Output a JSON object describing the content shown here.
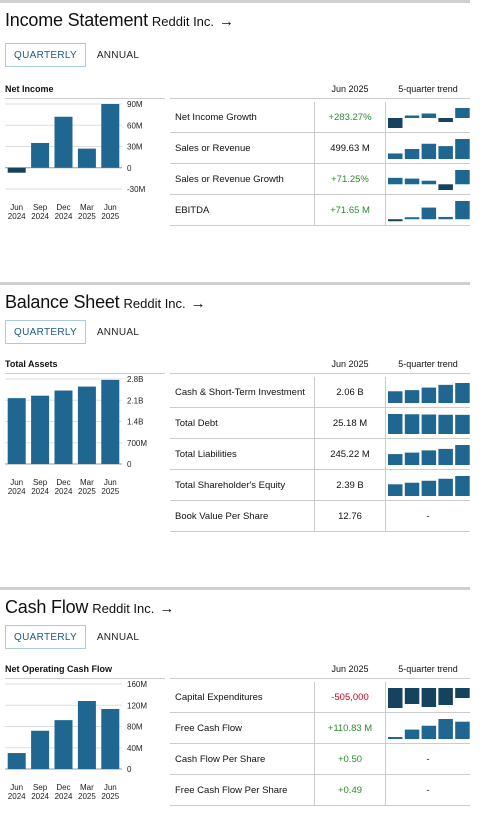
{
  "colors": {
    "bar": "#1f6790",
    "spark": "#1f6790",
    "spark_dark": "#15425e",
    "positive": "#2e8b2e",
    "negative": "#d0021b"
  },
  "quarters": [
    {
      "m": "Jun",
      "y": "2024"
    },
    {
      "m": "Sep",
      "y": "2024"
    },
    {
      "m": "Dec",
      "y": "2024"
    },
    {
      "m": "Mar",
      "y": "2025"
    },
    {
      "m": "Jun",
      "y": "2025"
    }
  ],
  "income": {
    "title": "Income Statement",
    "company": "Reddit Inc.",
    "arrow": "→",
    "tabs": {
      "quarterly": "QUARTERLY",
      "annual": "ANNUAL"
    },
    "chart_label": "Net Income",
    "col_period": "Jun 2025",
    "col_trend": "5-quarter trend",
    "rows": [
      {
        "label": "Net Income Growth",
        "value": "+283.27%",
        "tone": "pos",
        "trend": [
          -1,
          0.25,
          0.45,
          -0.4,
          1
        ],
        "dash": false
      },
      {
        "label": "Sales or Revenue",
        "value": "499.63 M",
        "tone": "",
        "trend": [
          281,
          348,
          428,
          392,
          500
        ],
        "dash": false
      },
      {
        "label": "Sales or Revenue Growth",
        "value": "+71.25%",
        "tone": "pos",
        "trend": [
          0.45,
          0.4,
          0.25,
          -0.4,
          1
        ],
        "dash": false
      },
      {
        "label": "EBITDA",
        "value": "+71.65 M",
        "tone": "pos",
        "trend": [
          -7,
          3,
          46,
          9,
          72
        ],
        "dash": false
      }
    ]
  },
  "balance": {
    "title": "Balance Sheet",
    "company": "Reddit Inc.",
    "arrow": "→",
    "tabs": {
      "quarterly": "QUARTERLY",
      "annual": "ANNUAL"
    },
    "chart_label": "Total Assets",
    "col_period": "Jun 2025",
    "col_trend": "5-quarter trend",
    "rows": [
      {
        "label": "Cash & Short-Term Investment",
        "value": "2.06 B",
        "tone": "",
        "trend": [
          1.7,
          1.75,
          1.86,
          1.98,
          2.06
        ],
        "dash": false
      },
      {
        "label": "Total Debt",
        "value": "25.18 M",
        "tone": "",
        "trend": [
          25.5,
          25.4,
          25.3,
          25.2,
          25.18
        ],
        "dash": false
      },
      {
        "label": "Total Liabilities",
        "value": "245.22 M",
        "tone": "",
        "trend": [
          196,
          204,
          216,
          224,
          245
        ],
        "dash": false
      },
      {
        "label": "Total Shareholder's Equity",
        "value": "2.39 B",
        "tone": "",
        "trend": [
          1.97,
          2.05,
          2.15,
          2.25,
          2.39
        ],
        "dash": false
      },
      {
        "label": "Book Value Per Share",
        "value": "12.76",
        "tone": "",
        "trend": [],
        "dash": true,
        "dash_text": "-"
      }
    ]
  },
  "cashflow": {
    "title": "Cash Flow",
    "company": "Reddit Inc.",
    "arrow": "→",
    "tabs": {
      "quarterly": "QUARTERLY",
      "annual": "ANNUAL"
    },
    "chart_label": "Net Operating Cash Flow",
    "col_period": "Jun 2025",
    "col_trend": "5-quarter trend",
    "rows": [
      {
        "label": "Capital Expenditures",
        "value": "-505,000",
        "tone": "neg",
        "trend": [
          -1,
          -0.8,
          -0.95,
          -0.85,
          -0.5
        ],
        "dash": false
      },
      {
        "label": "Free Cash Flow",
        "value": "+110.83 M",
        "tone": "pos",
        "trend": [
          30,
          70,
          90,
          125,
          111
        ],
        "dash": false
      },
      {
        "label": "Cash Flow Per Share",
        "value": "+0.50",
        "tone": "pos",
        "trend": [],
        "dash": true,
        "dash_text": "-"
      },
      {
        "label": "Free Cash Flow Per Share",
        "value": "+0.49",
        "tone": "pos",
        "trend": [],
        "dash": true,
        "dash_text": "-"
      }
    ]
  },
  "chart_data": [
    {
      "type": "bar",
      "name_ref": "income",
      "title": "Net Income",
      "categories": [
        "Jun 2024",
        "Sep 2024",
        "Dec 2024",
        "Mar 2025",
        "Jun 2025"
      ],
      "values": [
        -7,
        35,
        72,
        27,
        90
      ],
      "ylim": [
        -30,
        90
      ],
      "yticks": [
        90,
        60,
        30,
        0,
        -30
      ],
      "ytick_labels": [
        "90M",
        "60M",
        "30M",
        "0",
        "-30M"
      ]
    },
    {
      "type": "bar",
      "name_ref": "balance",
      "title": "Total Assets",
      "categories": [
        "Jun 2024",
        "Sep 2024",
        "Dec 2024",
        "Mar 2025",
        "Jun 2025"
      ],
      "values": [
        2.17,
        2.25,
        2.42,
        2.55,
        2.77
      ],
      "ylim": [
        0,
        2.8
      ],
      "yticks": [
        2.8,
        2.1,
        1.4,
        0.7,
        0
      ],
      "ytick_labels": [
        "2.8B",
        "2.1B",
        "1.4B",
        "700M",
        "0"
      ]
    },
    {
      "type": "bar",
      "name_ref": "cashflow",
      "title": "Net Operating Cash Flow",
      "categories": [
        "Jun 2024",
        "Sep 2024",
        "Dec 2024",
        "Mar 2025",
        "Jun 2025"
      ],
      "values": [
        30,
        72,
        92,
        128,
        113
      ],
      "ylim": [
        0,
        160
      ],
      "yticks": [
        160,
        120,
        80,
        40,
        0
      ],
      "ytick_labels": [
        "160M",
        "120M",
        "80M",
        "40M",
        "0"
      ]
    }
  ]
}
